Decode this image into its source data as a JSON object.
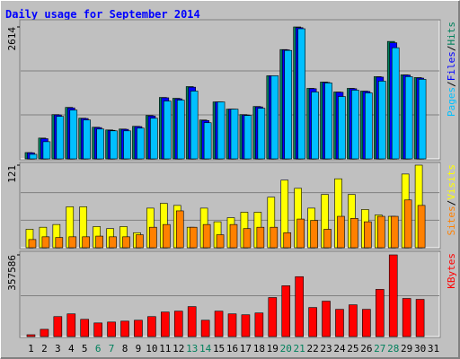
{
  "chart_data": [
    {
      "type": "bar",
      "title": "Daily usage for September 2014",
      "categories": [
        "1",
        "2",
        "3",
        "4",
        "5",
        "6",
        "7",
        "8",
        "9",
        "10",
        "11",
        "12",
        "13",
        "14",
        "15",
        "16",
        "17",
        "18",
        "19",
        "20",
        "21",
        "22",
        "23",
        "24",
        "25",
        "26",
        "27",
        "28",
        "29",
        "30",
        "31"
      ],
      "label_colors": [
        "#000000",
        "#000000",
        "#000000",
        "#000000",
        "#000000",
        "#00805c",
        "#00805c",
        "#000000",
        "#000000",
        "#000000",
        "#000000",
        "#000000",
        "#00805c",
        "#00805c",
        "#000000",
        "#000000",
        "#000000",
        "#000000",
        "#000000",
        "#00805c",
        "#00805c",
        "#000000",
        "#000000",
        "#000000",
        "#000000",
        "#000000",
        "#00805c",
        "#00805c",
        "#000000",
        "#000000",
        "#000000"
      ],
      "ylim": [
        0,
        2614
      ],
      "yticks": [
        2614
      ],
      "separator": "/",
      "series": [
        {
          "name": "Hits",
          "color": "#00805c",
          "values": [
            125,
            412,
            877,
            1020,
            806,
            627,
            573,
            591,
            645,
            859,
            1217,
            1200,
            1432,
            770,
            1128,
            985,
            877,
            1038,
            1647,
            2166,
            2614,
            1397,
            1522,
            1325,
            1397,
            1343,
            1629,
            2327,
            1665,
            1611,
            null
          ]
        },
        {
          "name": "Files",
          "color": "#0000ff",
          "values": [
            120,
            400,
            870,
            1010,
            800,
            620,
            565,
            585,
            640,
            850,
            1210,
            1190,
            1420,
            760,
            1128,
            985,
            870,
            1030,
            1647,
            2160,
            2600,
            1390,
            1515,
            1320,
            1390,
            1335,
            1620,
            2300,
            1660,
            1600,
            null
          ]
        },
        {
          "name": "Pages",
          "color": "#00c0ff",
          "values": [
            90,
            340,
            841,
            967,
            770,
            591,
            555,
            555,
            609,
            806,
            1146,
            1164,
            1343,
            716,
            1128,
            985,
            859,
            1003,
            1647,
            2148,
            2578,
            1325,
            1504,
            1235,
            1361,
            1307,
            1540,
            2202,
            1629,
            1576,
            null
          ]
        }
      ]
    },
    {
      "type": "bar",
      "ylim": [
        0,
        121
      ],
      "yticks": [
        121
      ],
      "separator": "/",
      "series": [
        {
          "name": "Visits",
          "color": "#ffff00",
          "values": [
            27,
            30,
            34,
            60,
            60,
            31,
            28,
            31,
            22,
            58,
            65,
            62,
            30,
            58,
            38,
            44,
            52,
            52,
            74,
            99,
            87,
            58,
            78,
            101,
            78,
            56,
            48,
            46,
            108,
            121,
            null
          ]
        },
        {
          "name": "Sites",
          "color": "#ff8000",
          "values": [
            12,
            16,
            15,
            16,
            16,
            17,
            16,
            16,
            19,
            30,
            34,
            54,
            30,
            34,
            19,
            34,
            28,
            30,
            30,
            22,
            42,
            40,
            27,
            46,
            43,
            38,
            46,
            46,
            70,
            62,
            null
          ]
        }
      ]
    },
    {
      "type": "bar",
      "ylim": [
        0,
        357586
      ],
      "yticks": [
        357586
      ],
      "series": [
        {
          "name": "KBytes",
          "color": "#ff0000",
          "values": [
            7947,
            31785,
            87409,
            99329,
            75488,
            59598,
            63571,
            67544,
            71515,
            87409,
            107275,
            111248,
            131113,
            71515,
            111248,
            99329,
            95356,
            103302,
            170845,
            222500,
            262230,
            127140,
            154950,
            119194,
            139060,
            119194,
            206605,
            357586,
            166872,
            162899,
            null
          ]
        }
      ]
    }
  ]
}
